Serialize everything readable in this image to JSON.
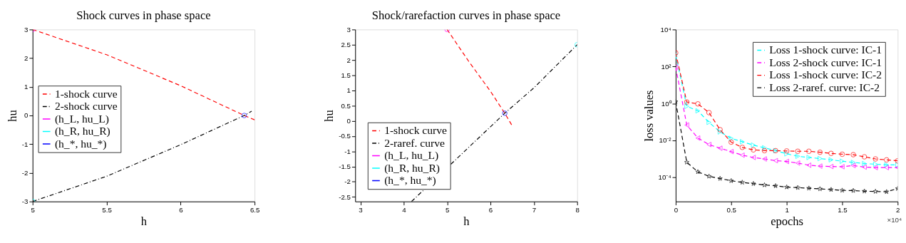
{
  "chart_data": [
    {
      "type": "line",
      "title": "Shock curves in phase space",
      "xlabel": "h",
      "ylabel": "hu",
      "xlim": [
        5,
        6.5
      ],
      "ylim": [
        -3,
        3
      ],
      "xticks": [
        5,
        5.5,
        6,
        6.5
      ],
      "yticks": [
        -3,
        -2,
        -1,
        0,
        1,
        2,
        3
      ],
      "grid": false,
      "legend": "left",
      "series": [
        {
          "name": "1-shock curve",
          "type": "line",
          "color": "#ff0000",
          "line_style": "dashed",
          "marker": "none",
          "x": [
            5,
            5.5,
            6,
            6.43,
            6.5
          ],
          "values": [
            3,
            2.12,
            1.04,
            0,
            -0.15
          ]
        },
        {
          "name": "2-shock curve",
          "type": "line",
          "color": "#000000",
          "line_style": "dashdot",
          "marker": "none",
          "x": [
            5,
            5.5,
            6,
            6.43,
            6.48
          ],
          "values": [
            -3,
            -2.12,
            -1.02,
            0,
            0.15
          ]
        },
        {
          "name": "(h_L, hu_L)",
          "type": "scatter",
          "color": "#ff00ff",
          "marker": "circle",
          "x": [
            5
          ],
          "values": [
            3
          ]
        },
        {
          "name": "(h_R, hu_R)",
          "type": "scatter",
          "color": "#00ffff",
          "marker": "circle",
          "x": [
            5
          ],
          "values": [
            -3
          ]
        },
        {
          "name": "(h_*, hu_*)",
          "type": "scatter",
          "color": "#0000ff",
          "marker": "circle",
          "x": [
            6.43
          ],
          "values": [
            0
          ]
        }
      ]
    },
    {
      "type": "line",
      "title": "Shock/rarefaction curves in phase space",
      "xlabel": "h",
      "ylabel": "hu",
      "xlim": [
        2.88,
        8
      ],
      "ylim": [
        -2.65,
        3
      ],
      "xticks": [
        3,
        4,
        5,
        6,
        7,
        8
      ],
      "yticks": [
        -2.5,
        -2,
        -1.5,
        -1,
        -0.5,
        0,
        0.5,
        1,
        1.5,
        2,
        2.5,
        3
      ],
      "grid": false,
      "legend": "bottom left",
      "series": [
        {
          "name": "1-shock curve",
          "type": "line",
          "color": "#ff0000",
          "line_style": "dashed",
          "marker": "none",
          "x": [
            5,
            5.5,
            6,
            6.33,
            6.5
          ],
          "values": [
            3,
            1.95,
            0.97,
            0.25,
            -0.16
          ]
        },
        {
          "name": "2-raref. curve",
          "type": "line",
          "color": "#000000",
          "line_style": "dashdot",
          "marker": "none",
          "x": [
            4.18,
            5.27,
            6.33,
            7,
            8
          ],
          "values": [
            -2.65,
            -1.18,
            0.25,
            1.08,
            2.5
          ]
        },
        {
          "name": "(h_L, hu_L)",
          "type": "scatter",
          "color": "#ff00ff",
          "marker": "circle",
          "x": [
            5
          ],
          "values": [
            3
          ]
        },
        {
          "name": "(h_R, hu_R)",
          "type": "scatter",
          "color": "#00ffff",
          "marker": "circle",
          "x": [
            8
          ],
          "values": [
            2.5
          ]
        },
        {
          "name": "(h_*, hu_*)",
          "type": "scatter",
          "color": "#0000ff",
          "marker": "circle",
          "x": [
            6.33
          ],
          "values": [
            0.25
          ]
        }
      ]
    },
    {
      "type": "line",
      "xlabel": "epochs",
      "ylabel": "loss values",
      "log": "y",
      "grid": false,
      "legend": "top right",
      "annotations": [
        "×10⁴"
      ],
      "xlim": [
        0,
        2
      ],
      "xticks": [
        0,
        0.5,
        1,
        1.5,
        2
      ],
      "ylim": [
        5e-06,
        10000
      ],
      "yticks": [
        {
          "value": 0.0001,
          "label": "10⁻⁴"
        },
        {
          "value": 0.01,
          "label": "10⁻²"
        },
        {
          "value": 1,
          "label": "10⁰"
        },
        {
          "value": 100,
          "label": "10²"
        },
        {
          "value": 10000,
          "label": "10⁴"
        }
      ],
      "x": [
        0,
        0.1,
        0.2,
        0.3,
        0.4,
        0.5,
        0.6,
        0.7,
        0.8,
        0.9,
        1,
        1.1,
        1.2,
        1.3,
        1.4,
        1.5,
        1.6,
        1.7,
        1.8,
        1.9,
        2
      ],
      "series": [
        {
          "name": "Loss 1-shock curve: IC-1",
          "type": "line",
          "color": "#00ffff",
          "line_style": "dashed",
          "marker": "triangle-right",
          "values": [
            440,
            0.7,
            0.4,
            0.095,
            0.029,
            0.013,
            0.0085,
            0.0056,
            0.004,
            0.0028,
            0.0019,
            0.0014,
            0.0012,
            0.00105,
            0.0009,
            0.00075,
            0.00065,
            0.00056,
            0.00052,
            0.00048,
            0.00048
          ]
        },
        {
          "name": "Loss 2-shock curve: IC-1",
          "type": "line",
          "color": "#ff00ff",
          "line_style": "dashed",
          "marker": "triangle-left",
          "values": [
            93,
            0.068,
            0.0135,
            0.006,
            0.0038,
            0.0025,
            0.0016,
            0.0012,
            0.001,
            0.00081,
            0.00073,
            0.0006,
            0.00046,
            0.00041,
            0.00039,
            0.00038,
            0.00044,
            0.00036,
            0.00034,
            0.00034,
            0.00034
          ]
        },
        {
          "name": "Loss 1-shock curve: IC-2",
          "type": "line",
          "color": "#ff0000",
          "line_style": "dashed",
          "marker": "circle",
          "values": [
            550,
            1.2,
            0.95,
            0.32,
            0.038,
            0.0081,
            0.0042,
            0.0031,
            0.0028,
            0.0028,
            0.0027,
            0.0026,
            0.0026,
            0.0023,
            0.002,
            0.0018,
            0.0017,
            0.0013,
            0.001,
            0.00089,
            0.00079
          ]
        },
        {
          "name": "Loss 2-raref. curve: IC-2",
          "type": "line",
          "color": "#000000",
          "line_style": "dashed",
          "marker": "star",
          "values": [
            1.25,
            0.00066,
            0.0002,
            0.000115,
            8.7e-05,
            6.6e-05,
            5.4e-05,
            4.6e-05,
            3.9e-05,
            3.5e-05,
            3e-05,
            2.8e-05,
            2.6e-05,
            2.4e-05,
            2.2e-05,
            2e-05,
            1.94e-05,
            1.8e-05,
            1.74e-05,
            1.67e-05,
            2.5e-05
          ]
        }
      ]
    }
  ]
}
